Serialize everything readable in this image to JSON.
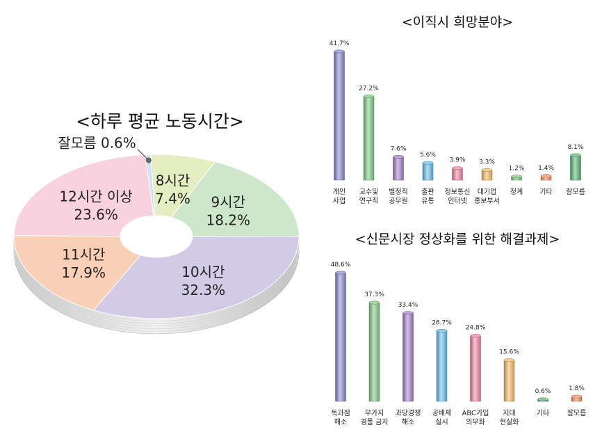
{
  "chart_data": [
    {
      "type": "pie",
      "title": "<하루 평균 노동시간>",
      "slices": [
        {
          "label": "8시간",
          "value": 7.4,
          "value_text": "7.4%",
          "color": "#e5eec0"
        },
        {
          "label": "9시간",
          "value": 18.2,
          "value_text": "18.2%",
          "color": "#cce7c9"
        },
        {
          "label": "10시간",
          "value": 32.3,
          "value_text": "32.3%",
          "color": "#d1cbe6"
        },
        {
          "label": "11시간",
          "value": 17.9,
          "value_text": "17.9%",
          "color": "#f9cfb6"
        },
        {
          "label": "12시간 이상",
          "value": 23.6,
          "value_text": "23.6%",
          "color": "#f8d3df"
        },
        {
          "label": "잘모름",
          "value": 0.6,
          "value_text": "0.6%",
          "color": "#cfe3f3"
        }
      ]
    },
    {
      "type": "bar",
      "title": "<이직시 희망분야>",
      "categories": [
        [
          "개인",
          "사업"
        ],
        [
          "교수및",
          "연구직"
        ],
        [
          "별정직",
          "공무원"
        ],
        [
          "출판",
          "유통"
        ],
        [
          "정보통신",
          "인터넷"
        ],
        [
          "대기업",
          "홍보부서"
        ],
        [
          "정계"
        ],
        [
          "기타"
        ],
        [
          "잘모름"
        ]
      ],
      "values": [
        41.7,
        27.2,
        7.6,
        5.6,
        3.9,
        3.3,
        1.2,
        1.4,
        8.1
      ],
      "value_labels": [
        "41.7%",
        "27.2%",
        "7.6%",
        "5.6%",
        "3.9%",
        "3.3%",
        "1.2%",
        "1.4%",
        "8.1%"
      ],
      "colors": [
        "#7d80c8",
        "#78c47a",
        "#9a77c2",
        "#5fb6e6",
        "#ec7b98",
        "#f0b35a",
        "#78c47a",
        "#ec8a5a",
        "#4fb06a"
      ]
    },
    {
      "type": "bar",
      "title": "<신문시장 정상화를 위한 해결과제>",
      "categories": [
        [
          "독과점",
          "해소"
        ],
        [
          "무가지",
          "경품 금지"
        ],
        [
          "과당경쟁",
          "해소"
        ],
        [
          "공배제",
          "실시"
        ],
        [
          "ABC가입",
          "의무화"
        ],
        [
          "지대",
          "현실화"
        ],
        [
          "기타"
        ],
        [
          "잘모름"
        ]
      ],
      "values": [
        48.6,
        37.3,
        33.4,
        26.7,
        24.8,
        15.6,
        0.6,
        1.8
      ],
      "value_labels": [
        "48.6%",
        "37.3%",
        "33.4%",
        "26.7%",
        "24.8%",
        "15.6%",
        "0.6%",
        "1.8%"
      ],
      "colors": [
        "#7d80c8",
        "#78c47a",
        "#9a77c2",
        "#5fb6e6",
        "#ec7b98",
        "#f0b35a",
        "#4fb06a",
        "#ec8a5a"
      ]
    }
  ]
}
